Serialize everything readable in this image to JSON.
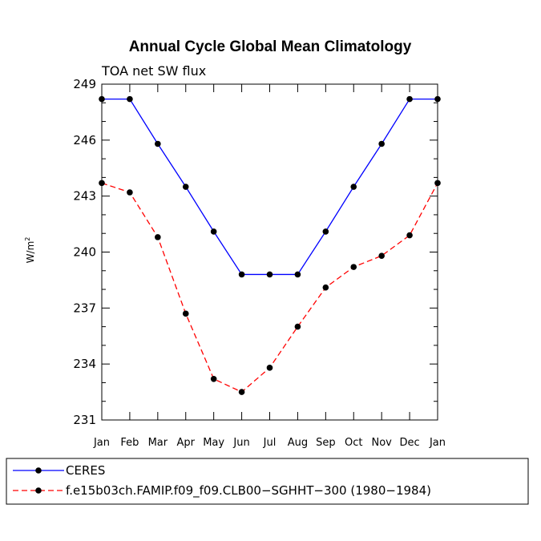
{
  "chart_data": {
    "type": "line",
    "title": "Annual Cycle Global Mean Climatology",
    "subtitle": "TOA net SW flux",
    "xlabel": "",
    "ylabel": "W/m",
    "ylabel_sup": "2",
    "categories": [
      "Jan",
      "Feb",
      "Mar",
      "Apr",
      "May",
      "Jun",
      "Jul",
      "Aug",
      "Sep",
      "Oct",
      "Nov",
      "Dec",
      "Jan"
    ],
    "ylim": [
      231,
      249
    ],
    "yticks": [
      231,
      234,
      237,
      240,
      243,
      246,
      249
    ],
    "series": [
      {
        "name": "CERES",
        "color": "#0000ff",
        "dash": "solid",
        "values": [
          248.2,
          248.2,
          245.8,
          243.5,
          241.1,
          238.8,
          238.8,
          238.8,
          241.1,
          243.5,
          245.8,
          248.2,
          248.2
        ]
      },
      {
        "name": "f.e15b03ch.FAMIP.f09_f09.CLB00−SGHHT−300 (1980−1984)",
        "color": "#ff0000",
        "dash": "dashed",
        "values": [
          243.7,
          243.2,
          240.8,
          236.7,
          233.2,
          232.5,
          233.8,
          236.0,
          238.1,
          239.2,
          239.8,
          240.9,
          243.7
        ]
      }
    ],
    "legend_position": "bottom-left"
  }
}
